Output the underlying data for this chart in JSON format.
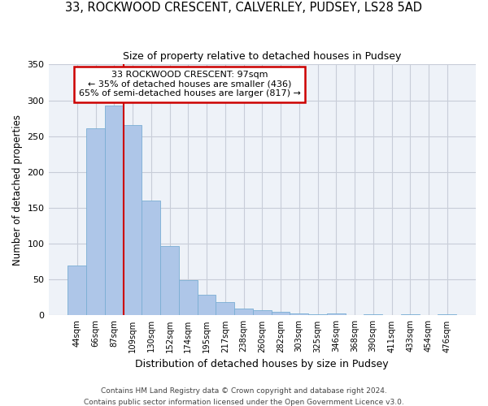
{
  "title": "33, ROCKWOOD CRESCENT, CALVERLEY, PUDSEY, LS28 5AD",
  "subtitle": "Size of property relative to detached houses in Pudsey",
  "xlabel": "Distribution of detached houses by size in Pudsey",
  "ylabel": "Number of detached properties",
  "bar_labels": [
    "44sqm",
    "66sqm",
    "87sqm",
    "109sqm",
    "130sqm",
    "152sqm",
    "174sqm",
    "195sqm",
    "217sqm",
    "238sqm",
    "260sqm",
    "282sqm",
    "303sqm",
    "325sqm",
    "346sqm",
    "368sqm",
    "390sqm",
    "411sqm",
    "433sqm",
    "454sqm",
    "476sqm"
  ],
  "bar_values": [
    70,
    261,
    293,
    265,
    160,
    97,
    49,
    29,
    19,
    10,
    7,
    5,
    3,
    2,
    3,
    0,
    2,
    0,
    2,
    0,
    2
  ],
  "bar_color": "#aec6e8",
  "bar_edgecolor": "#7aaed4",
  "annotation_title": "33 ROCKWOOD CRESCENT: 97sqm",
  "annotation_line1": "← 35% of detached houses are smaller (436)",
  "annotation_line2": "65% of semi-detached houses are larger (817) →",
  "annotation_box_color": "#ffffff",
  "annotation_box_edgecolor": "#cc0000",
  "vline_color": "#cc0000",
  "ylim": [
    0,
    350
  ],
  "yticks": [
    0,
    50,
    100,
    150,
    200,
    250,
    300,
    350
  ],
  "plot_bg_color": "#eef2f8",
  "footer1": "Contains HM Land Registry data © Crown copyright and database right 2024.",
  "footer2": "Contains public sector information licensed under the Open Government Licence v3.0.",
  "background_color": "#ffffff",
  "grid_color": "#c8cdd8"
}
